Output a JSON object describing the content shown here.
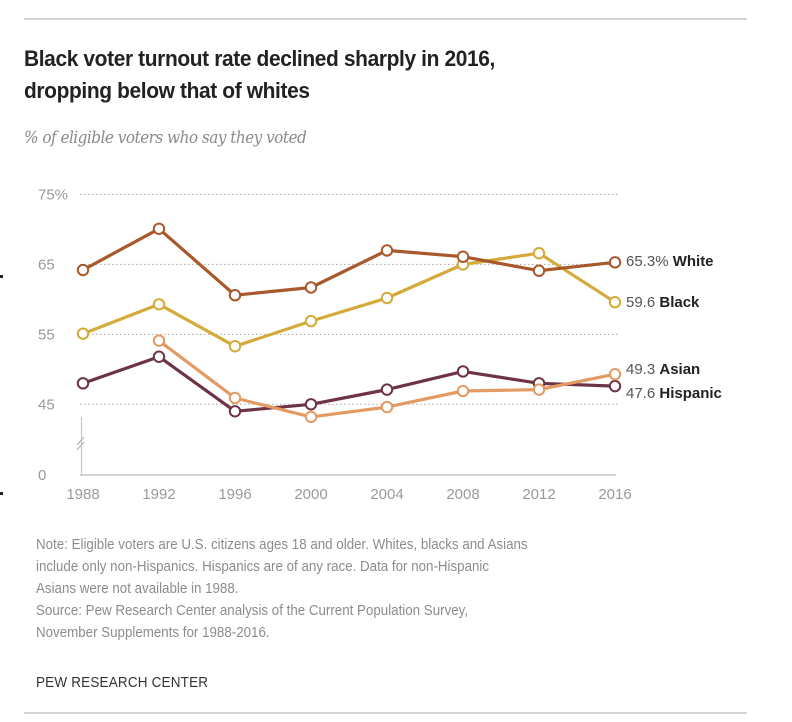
{
  "header": {
    "title_line1": "Black voter turnout rate declined sharply in 2016,",
    "title_line2": "dropping below that of whites",
    "subtitle": "% of eligible voters who say they voted"
  },
  "chart_data": {
    "type": "line",
    "title": "Black voter turnout rate declined sharply in 2016, dropping below that of whites",
    "subtitle": "% of eligible voters who say they voted",
    "xlabel": "",
    "ylabel": "% of eligible voters who say they voted",
    "x": [
      1988,
      1992,
      1996,
      2000,
      2004,
      2008,
      2012,
      2016
    ],
    "x_tick_labels": [
      "1988",
      "1992",
      "1996",
      "2000",
      "2004",
      "2008",
      "2012",
      "2016"
    ],
    "y_ticks": [
      {
        "value": 75,
        "label": "75%"
      },
      {
        "value": 65,
        "label": "65"
      },
      {
        "value": 55,
        "label": "55"
      },
      {
        "value": 45,
        "label": "45"
      },
      {
        "value": 0,
        "label": "0"
      }
    ],
    "ylim": [
      0,
      75
    ],
    "axis_break": "between 0 and 45",
    "grid": true,
    "legend": "direct labels at line ends (right)",
    "series": [
      {
        "name": "White",
        "color": "#a8582b",
        "values": [
          64.2,
          70.1,
          60.6,
          61.7,
          67.0,
          66.1,
          64.1,
          65.3
        ],
        "end_label_value": "65.3%",
        "end_label_name": "White"
      },
      {
        "name": "Black",
        "color": "#d4aa3a",
        "values": [
          55.1,
          59.3,
          53.3,
          56.9,
          60.2,
          65.0,
          66.6,
          59.6
        ],
        "end_label_value": "59.6",
        "end_label_name": "Black"
      },
      {
        "name": "Asian",
        "color": "#e39a63",
        "values": [
          null,
          54.1,
          45.9,
          43.2,
          44.6,
          46.9,
          47.1,
          49.3
        ],
        "end_label_value": "49.3",
        "end_label_name": "Asian"
      },
      {
        "name": "Hispanic",
        "color": "#6e3444",
        "values": [
          48.0,
          51.8,
          44.0,
          45.0,
          47.1,
          49.7,
          48.0,
          47.6
        ],
        "end_label_value": "47.6",
        "end_label_name": "Hispanic"
      }
    ]
  },
  "footer": {
    "note_lines": [
      "Note: Eligible voters are U.S. citizens ages 18 and older. Whites, blacks and Asians",
      "include only non-Hispanics. Hispanics are of any race. Data for non-Hispanic",
      "Asians were not available in 1988."
    ],
    "source_lines": [
      "Source: Pew Research Center analysis of the Current Population Survey,",
      "November Supplements for 1988-2016."
    ],
    "brand": "PEW RESEARCH CENTER"
  }
}
